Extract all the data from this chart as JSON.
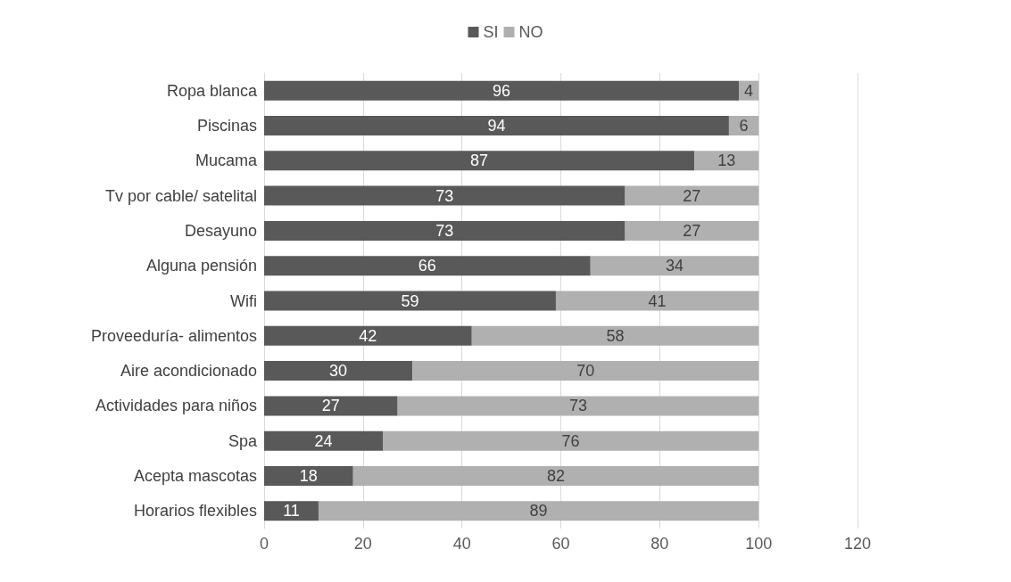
{
  "chart_data": {
    "type": "bar",
    "orientation": "horizontal",
    "stacked": true,
    "categories": [
      "Ropa blanca",
      "Piscinas",
      "Mucama",
      "Tv por cable/ satelital",
      "Desayuno",
      "Alguna pensión",
      "Wifi",
      "Proveeduría- alimentos",
      "Aire acondicionado",
      "Actividades para niños",
      "Spa",
      "Acepta mascotas",
      "Horarios flexibles"
    ],
    "series": [
      {
        "name": "SI",
        "color": "#595959",
        "values": [
          96,
          94,
          87,
          73,
          73,
          66,
          59,
          42,
          30,
          27,
          24,
          18,
          11
        ]
      },
      {
        "name": "NO",
        "color": "#b0b0b0",
        "values": [
          4,
          6,
          13,
          27,
          27,
          34,
          41,
          58,
          70,
          73,
          76,
          82,
          89
        ]
      }
    ],
    "xlim": [
      0,
      120
    ],
    "xticks": [
      0,
      20,
      40,
      60,
      80,
      100,
      120
    ],
    "grid": "x",
    "legend": "top",
    "data_labels": true
  }
}
